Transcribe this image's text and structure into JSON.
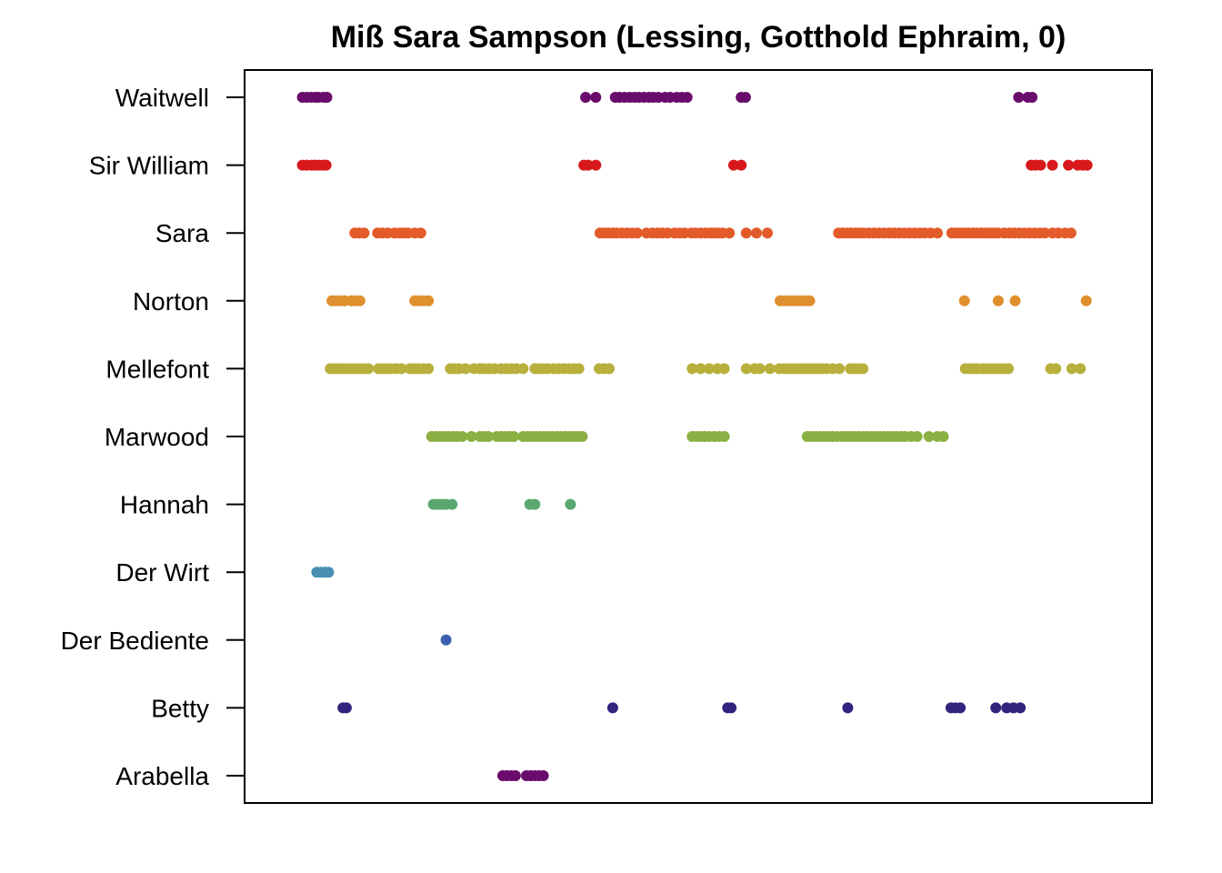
{
  "chart_data": {
    "type": "scatter",
    "title": "Miß Sara Sampson (Lessing, Gotthold Ephraim, 0)",
    "xlabel": "",
    "ylabel": "",
    "xlim": [
      0,
      100
    ],
    "legend": "none",
    "grid": false,
    "categories": [
      "Waitwell",
      "Sir William",
      "Sara",
      "Norton",
      "Mellefont",
      "Marwood",
      "Hannah",
      "Der Wirt",
      "Der Bediente",
      "Betty",
      "Arabella"
    ],
    "series": [
      {
        "name": "Waitwell",
        "color": "#6a0c6b",
        "x": [
          3.5,
          4.0,
          4.5,
          5.0,
          5.4,
          6.0,
          6.4,
          37.0,
          38.2,
          40.5,
          41.0,
          41.6,
          42.2,
          42.8,
          43.3,
          43.9,
          44.5,
          45.0,
          45.6,
          46.4,
          47.0,
          47.8,
          48.4,
          49.0,
          55.4,
          55.9,
          88.2,
          89.3,
          89.8
        ]
      },
      {
        "name": "Sir William",
        "color": "#d7191c",
        "x": [
          3.5,
          4.0,
          4.6,
          5.0,
          5.5,
          6.0,
          6.3,
          36.8,
          37.3,
          38.2,
          54.5,
          55.4,
          89.7,
          90.2,
          90.8,
          92.2,
          94.1,
          95.2,
          95.8,
          96.3
        ]
      },
      {
        "name": "Sara",
        "color": "#e35b2b",
        "x": [
          9.7,
          10.2,
          10.8,
          12.4,
          13.0,
          13.6,
          14.4,
          15.0,
          15.5,
          16.0,
          16.8,
          17.5,
          38.7,
          39.2,
          39.7,
          40.2,
          40.7,
          41.3,
          41.9,
          42.5,
          43.1,
          44.2,
          44.9,
          45.5,
          46.1,
          46.7,
          47.5,
          48.1,
          48.7,
          49.5,
          50.0,
          50.6,
          51.2,
          51.8,
          52.2,
          52.7,
          53.2,
          54.0,
          56.0,
          57.2,
          58.5,
          66.9,
          67.4,
          67.9,
          68.4,
          68.9,
          69.4,
          69.9,
          70.5,
          71.1,
          71.7,
          72.3,
          72.9,
          73.5,
          74.1,
          74.7,
          75.3,
          75.9,
          76.5,
          77.1,
          77.8,
          78.6,
          80.3,
          80.8,
          81.3,
          81.8,
          82.3,
          82.8,
          83.3,
          83.8,
          84.3,
          84.8,
          85.3,
          85.8,
          86.5,
          87.1,
          87.7,
          88.3,
          88.9,
          89.5,
          90.1,
          90.7,
          91.3,
          92.2,
          92.9,
          93.7,
          94.4
        ]
      },
      {
        "name": "Norton",
        "color": "#df8f2e",
        "x": [
          7.0,
          7.5,
          8.0,
          8.5,
          9.3,
          9.8,
          10.3,
          16.8,
          17.3,
          17.8,
          18.4,
          60.0,
          60.5,
          61.0,
          61.5,
          62.0,
          62.5,
          63.0,
          63.5,
          81.8,
          85.8,
          87.8,
          96.2
        ]
      },
      {
        "name": "Mellefont",
        "color": "#b8b03c",
        "x": [
          6.8,
          7.3,
          7.8,
          8.3,
          8.8,
          9.3,
          9.8,
          10.3,
          10.8,
          11.3,
          12.5,
          13.0,
          13.5,
          14.0,
          14.6,
          15.2,
          16.2,
          16.7,
          17.2,
          17.8,
          18.4,
          21.0,
          21.5,
          22.0,
          22.8,
          23.8,
          24.5,
          25.0,
          25.6,
          26.2,
          27.0,
          27.6,
          28.2,
          28.8,
          29.6,
          31.0,
          31.5,
          32.0,
          32.5,
          33.2,
          33.8,
          34.4,
          35.0,
          35.6,
          36.2,
          38.6,
          39.2,
          39.8,
          49.6,
          50.6,
          51.6,
          52.6,
          53.4,
          56.0,
          57.0,
          57.6,
          58.8,
          59.9,
          60.5,
          61.0,
          61.5,
          62.0,
          62.5,
          63.0,
          63.5,
          64.0,
          64.5,
          65.0,
          65.5,
          66.2,
          67.0,
          68.3,
          68.8,
          69.3,
          69.8,
          81.9,
          82.4,
          82.9,
          83.4,
          84.0,
          84.5,
          85.0,
          85.5,
          86.0,
          86.5,
          87.0,
          92.0,
          92.6,
          94.5,
          95.5
        ]
      },
      {
        "name": "Marwood",
        "color": "#8bb043",
        "x": [
          18.8,
          19.3,
          19.8,
          20.3,
          20.8,
          21.3,
          21.8,
          22.4,
          23.5,
          24.5,
          25.0,
          25.5,
          26.5,
          27.0,
          27.5,
          28.0,
          28.5,
          29.6,
          30.1,
          30.6,
          31.1,
          31.6,
          32.1,
          32.6,
          33.1,
          33.6,
          34.1,
          34.6,
          35.1,
          35.6,
          36.1,
          36.6,
          49.6,
          50.1,
          50.6,
          51.1,
          51.6,
          52.2,
          52.8,
          53.4,
          63.2,
          63.7,
          64.2,
          64.7,
          65.2,
          65.7,
          66.2,
          66.7,
          67.3,
          67.8,
          68.3,
          68.8,
          69.3,
          69.8,
          70.3,
          70.8,
          71.3,
          71.8,
          72.3,
          72.8,
          73.3,
          73.8,
          74.3,
          74.8,
          75.5,
          76.2,
          77.6,
          78.6,
          79.3
        ]
      },
      {
        "name": "Hannah",
        "color": "#5aa870",
        "x": [
          19.0,
          19.5,
          20.0,
          20.5,
          21.2,
          30.4,
          31.0,
          35.2
        ]
      },
      {
        "name": "Der Wirt",
        "color": "#4a8fb2",
        "x": [
          5.2,
          5.7,
          6.2,
          6.6
        ]
      },
      {
        "name": "Der Bediente",
        "color": "#3a5fad",
        "x": [
          20.5
        ]
      },
      {
        "name": "Betty",
        "color": "#33237e",
        "x": [
          8.3,
          8.7,
          40.2,
          53.8,
          54.2,
          68.0,
          80.2,
          80.7,
          81.3,
          85.5,
          86.8,
          87.6,
          88.4
        ]
      },
      {
        "name": "Arabella",
        "color": "#6a0c6b",
        "x": [
          27.2,
          27.7,
          28.2,
          28.7,
          30.0,
          30.5,
          31.0,
          31.5,
          32.0
        ]
      }
    ]
  }
}
